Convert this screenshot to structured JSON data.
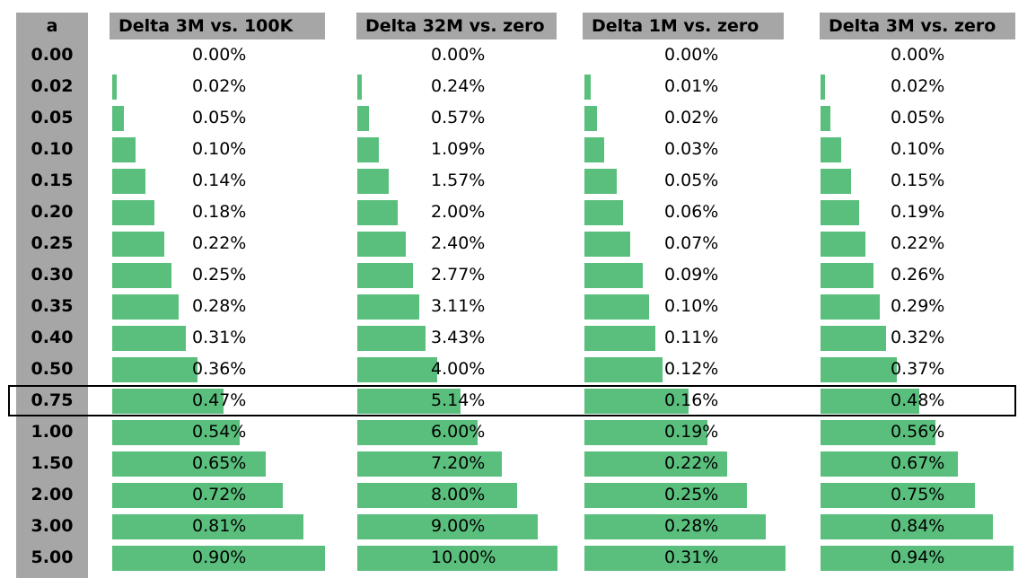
{
  "a_header": "a",
  "a_values": [
    "0.00",
    "0.02",
    "0.05",
    "0.10",
    "0.15",
    "0.20",
    "0.25",
    "0.30",
    "0.35",
    "0.40",
    "0.50",
    "0.75",
    "1.00",
    "1.50",
    "2.00",
    "3.00",
    "5.00"
  ],
  "highlighted_a": "0.75",
  "colors": {
    "bar": "#5abf7d",
    "header": "#a6a6a6",
    "highlight_border": "#000000"
  },
  "chart_data": {
    "type": "bar",
    "categories": [
      "0.00",
      "0.02",
      "0.05",
      "0.10",
      "0.15",
      "0.20",
      "0.25",
      "0.30",
      "0.35",
      "0.40",
      "0.50",
      "0.75",
      "1.00",
      "1.50",
      "2.00",
      "3.00",
      "5.00"
    ],
    "series": [
      {
        "name": "Delta 3M vs. 100K",
        "values": [
          0.0,
          0.02,
          0.05,
          0.1,
          0.14,
          0.18,
          0.22,
          0.25,
          0.28,
          0.31,
          0.36,
          0.47,
          0.54,
          0.65,
          0.72,
          0.81,
          0.9
        ],
        "labels": [
          "0.00%",
          "0.02%",
          "0.05%",
          "0.10%",
          "0.14%",
          "0.18%",
          "0.22%",
          "0.25%",
          "0.28%",
          "0.31%",
          "0.36%",
          "0.47%",
          "0.54%",
          "0.65%",
          "0.72%",
          "0.81%",
          "0.90%"
        ]
      },
      {
        "name": "Delta 32M vs. zero",
        "values": [
          0.0,
          0.24,
          0.57,
          1.09,
          1.57,
          2.0,
          2.4,
          2.77,
          3.11,
          3.43,
          4.0,
          5.14,
          6.0,
          7.2,
          8.0,
          9.0,
          10.0
        ],
        "labels": [
          "0.00%",
          "0.24%",
          "0.57%",
          "1.09%",
          "1.57%",
          "2.00%",
          "2.40%",
          "2.77%",
          "3.11%",
          "3.43%",
          "4.00%",
          "5.14%",
          "6.00%",
          "7.20%",
          "8.00%",
          "9.00%",
          "10.00%"
        ]
      },
      {
        "name": "Delta 1M vs. zero",
        "values": [
          0.0,
          0.01,
          0.02,
          0.03,
          0.05,
          0.06,
          0.07,
          0.09,
          0.1,
          0.11,
          0.12,
          0.16,
          0.19,
          0.22,
          0.25,
          0.28,
          0.31
        ],
        "labels": [
          "0.00%",
          "0.01%",
          "0.02%",
          "0.03%",
          "0.05%",
          "0.06%",
          "0.07%",
          "0.09%",
          "0.10%",
          "0.11%",
          "0.12%",
          "0.16%",
          "0.19%",
          "0.22%",
          "0.25%",
          "0.28%",
          "0.31%"
        ]
      },
      {
        "name": "Delta 3M vs. zero",
        "values": [
          0.0,
          0.02,
          0.05,
          0.1,
          0.15,
          0.19,
          0.22,
          0.26,
          0.29,
          0.32,
          0.37,
          0.48,
          0.56,
          0.67,
          0.75,
          0.84,
          0.94
        ],
        "labels": [
          "0.00%",
          "0.02%",
          "0.05%",
          "0.10%",
          "0.15%",
          "0.19%",
          "0.22%",
          "0.26%",
          "0.29%",
          "0.32%",
          "0.37%",
          "0.48%",
          "0.56%",
          "0.67%",
          "0.75%",
          "0.84%",
          "0.94%"
        ]
      }
    ],
    "unit": "%",
    "grid": false
  }
}
